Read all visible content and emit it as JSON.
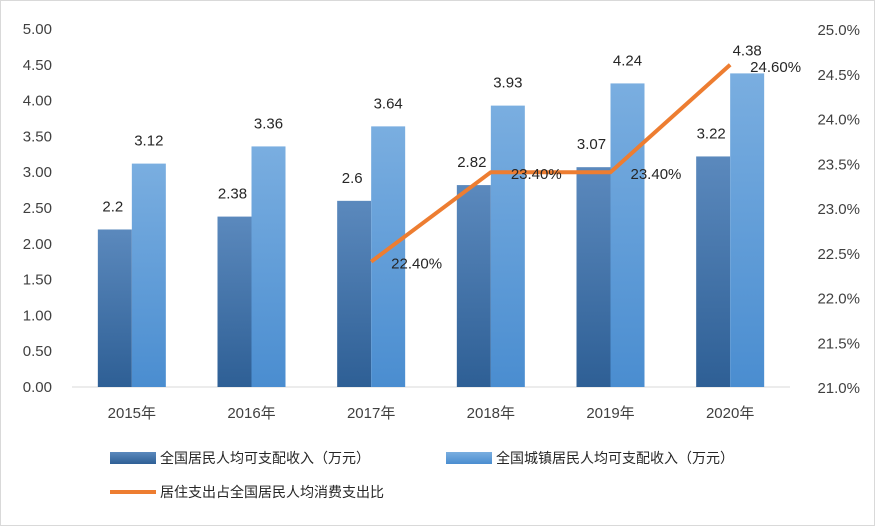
{
  "chart_data": {
    "type": "bar",
    "categories": [
      "2015年",
      "2016年",
      "2017年",
      "2018年",
      "2019年",
      "2020年"
    ],
    "series": [
      {
        "name": "全国居民人均可支配收入（万元）",
        "type": "bar",
        "axis": "left",
        "color": "#3d71ab",
        "values": [
          2.2,
          2.38,
          2.6,
          2.82,
          3.07,
          3.22
        ],
        "labels": [
          "2.2",
          "2.38",
          "2.6",
          "2.82",
          "3.07",
          "3.22"
        ]
      },
      {
        "name": "全国城镇居民人均可支配收入（万元）",
        "type": "bar",
        "axis": "left",
        "color": "#5b9bd5",
        "values": [
          3.12,
          3.36,
          3.64,
          3.93,
          4.24,
          4.38
        ],
        "labels": [
          "3.12",
          "3.36",
          "3.64",
          "3.93",
          "4.24",
          "4.38"
        ]
      },
      {
        "name": "居住支出占全国居民人均消费支出比",
        "type": "line",
        "axis": "right",
        "color": "#ed7d31",
        "values": [
          null,
          null,
          22.4,
          23.4,
          23.4,
          24.6
        ],
        "labels": [
          null,
          null,
          "22.40%",
          "23.40%",
          "23.40%",
          "24.60%"
        ]
      }
    ],
    "y_left": {
      "ylim": [
        0,
        5
      ],
      "ticks": [
        0,
        0.5,
        1,
        1.5,
        2,
        2.5,
        3,
        3.5,
        4,
        4.5,
        5
      ],
      "tick_labels": [
        "0.00",
        "0.50",
        "1.00",
        "1.50",
        "2.00",
        "2.50",
        "3.00",
        "3.50",
        "4.00",
        "4.50",
        "5.00"
      ]
    },
    "y_right": {
      "ylim": [
        21,
        25
      ],
      "ticks": [
        21,
        21.5,
        22,
        22.5,
        23,
        23.5,
        24,
        24.5,
        25
      ],
      "tick_labels": [
        "21.0%",
        "21.5%",
        "22.0%",
        "22.5%",
        "23.0%",
        "23.5%",
        "24.0%",
        "24.5%",
        "25.0%"
      ]
    },
    "grid": false,
    "legend_position": "bottom"
  }
}
